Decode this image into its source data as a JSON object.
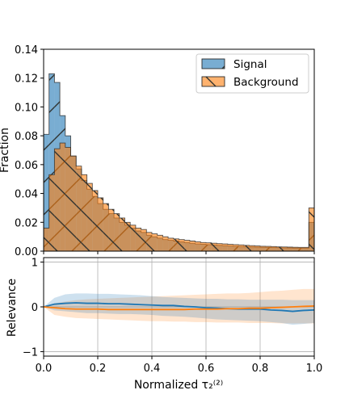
{
  "chart_data": [
    {
      "type": "histogram",
      "xlabel": "",
      "ylabel": "Fraction",
      "xlim": [
        0.0,
        1.0
      ],
      "ylim": [
        0.0,
        0.14
      ],
      "yticks": [
        "0.00",
        "0.02",
        "0.04",
        "0.06",
        "0.08",
        "0.10",
        "0.12",
        "0.14"
      ],
      "legend_position": "top-right",
      "bin_edges": [
        0.0,
        0.02,
        0.04,
        0.06,
        0.08,
        0.1,
        0.12,
        0.14,
        0.16,
        0.18,
        0.2,
        0.22,
        0.24,
        0.26,
        0.28,
        0.3,
        0.32,
        0.34,
        0.36,
        0.38,
        0.4,
        0.42,
        0.44,
        0.46,
        0.48,
        0.5,
        0.52,
        0.54,
        0.56,
        0.58,
        0.6,
        0.62,
        0.64,
        0.66,
        0.68,
        0.7,
        0.72,
        0.74,
        0.76,
        0.78,
        0.8,
        0.82,
        0.84,
        0.86,
        0.88,
        0.9,
        0.92,
        0.94,
        0.96,
        0.98,
        1.0
      ],
      "series": [
        {
          "name": "Signal",
          "color": "#1f77b4",
          "hatch": "/",
          "values": [
            0.081,
            0.123,
            0.117,
            0.094,
            0.08,
            0.066,
            0.057,
            0.049,
            0.043,
            0.038,
            0.033,
            0.029,
            0.026,
            0.023,
            0.02,
            0.018,
            0.016,
            0.014,
            0.013,
            0.011,
            0.01,
            0.009,
            0.008,
            0.0075,
            0.007,
            0.0065,
            0.006,
            0.0055,
            0.005,
            0.0048,
            0.0045,
            0.0043,
            0.004,
            0.0038,
            0.0036,
            0.0034,
            0.0032,
            0.003,
            0.0029,
            0.0028,
            0.0027,
            0.0026,
            0.0025,
            0.0024,
            0.0023,
            0.0022,
            0.0021,
            0.0021,
            0.0021,
            0.02
          ]
        },
        {
          "name": "Background",
          "color": "#ff7f0e",
          "hatch": "\\",
          "values": [
            0.016,
            0.053,
            0.071,
            0.075,
            0.072,
            0.066,
            0.059,
            0.053,
            0.047,
            0.042,
            0.037,
            0.033,
            0.029,
            0.026,
            0.023,
            0.02,
            0.018,
            0.016,
            0.015,
            0.013,
            0.012,
            0.011,
            0.01,
            0.009,
            0.0085,
            0.008,
            0.0075,
            0.007,
            0.0065,
            0.006,
            0.0058,
            0.0055,
            0.0052,
            0.005,
            0.0047,
            0.0045,
            0.0043,
            0.004,
            0.0038,
            0.0036,
            0.0034,
            0.0033,
            0.0032,
            0.003,
            0.0029,
            0.0028,
            0.0027,
            0.0026,
            0.0026,
            0.03
          ]
        }
      ]
    },
    {
      "type": "line",
      "xlabel": "Normalized τ₂⁽²⁾",
      "ylabel": "Relevance",
      "xlim": [
        0.0,
        1.0
      ],
      "ylim": [
        -1.1,
        1.1
      ],
      "xticks": [
        "0.0",
        "0.2",
        "0.4",
        "0.6",
        "0.8",
        "1.0"
      ],
      "yticks": [
        "−1",
        "0",
        "1"
      ],
      "grid": true,
      "x": [
        0.0,
        0.04,
        0.08,
        0.12,
        0.16,
        0.2,
        0.24,
        0.28,
        0.32,
        0.36,
        0.4,
        0.44,
        0.48,
        0.52,
        0.56,
        0.6,
        0.64,
        0.68,
        0.72,
        0.76,
        0.8,
        0.84,
        0.88,
        0.92,
        0.96,
        1.0
      ],
      "series": [
        {
          "name": "Signal",
          "color": "#1f77b4",
          "values": [
            0.0,
            0.06,
            0.08,
            0.09,
            0.08,
            0.08,
            0.07,
            0.07,
            0.06,
            0.05,
            0.04,
            0.03,
            0.03,
            0.01,
            0.0,
            -0.02,
            -0.03,
            -0.04,
            -0.05,
            -0.05,
            -0.05,
            -0.07,
            -0.08,
            -0.1,
            -0.08,
            -0.07
          ],
          "band_upper": [
            0.0,
            0.2,
            0.28,
            0.3,
            0.3,
            0.29,
            0.29,
            0.28,
            0.27,
            0.26,
            0.24,
            0.22,
            0.21,
            0.2,
            0.19,
            0.18,
            0.18,
            0.17,
            0.17,
            0.16,
            0.16,
            0.16,
            0.16,
            0.15,
            0.15,
            0.15
          ],
          "band_lower": [
            0.0,
            -0.08,
            -0.1,
            -0.12,
            -0.14,
            -0.14,
            -0.15,
            -0.16,
            -0.16,
            -0.17,
            -0.18,
            -0.2,
            -0.21,
            -0.22,
            -0.24,
            -0.26,
            -0.28,
            -0.29,
            -0.3,
            -0.31,
            -0.32,
            -0.34,
            -0.36,
            -0.4,
            -0.38,
            -0.36
          ]
        },
        {
          "name": "Background",
          "color": "#ff7f0e",
          "values": [
            0.0,
            -0.02,
            -0.04,
            -0.05,
            -0.05,
            -0.05,
            -0.06,
            -0.06,
            -0.06,
            -0.06,
            -0.06,
            -0.06,
            -0.06,
            -0.06,
            -0.05,
            -0.05,
            -0.05,
            -0.04,
            -0.04,
            -0.03,
            -0.03,
            -0.02,
            -0.01,
            0.0,
            0.01,
            0.02
          ],
          "band_upper": [
            0.0,
            0.08,
            0.12,
            0.15,
            0.17,
            0.18,
            0.19,
            0.2,
            0.21,
            0.22,
            0.23,
            0.24,
            0.25,
            0.26,
            0.27,
            0.28,
            0.29,
            0.3,
            0.3,
            0.31,
            0.33,
            0.35,
            0.36,
            0.38,
            0.4,
            0.4
          ],
          "band_lower": [
            0.0,
            -0.18,
            -0.22,
            -0.25,
            -0.26,
            -0.27,
            -0.28,
            -0.29,
            -0.3,
            -0.31,
            -0.32,
            -0.32,
            -0.33,
            -0.33,
            -0.34,
            -0.34,
            -0.35,
            -0.35,
            -0.35,
            -0.36,
            -0.36,
            -0.36,
            -0.37,
            -0.37,
            -0.37,
            -0.37
          ]
        }
      ]
    }
  ]
}
